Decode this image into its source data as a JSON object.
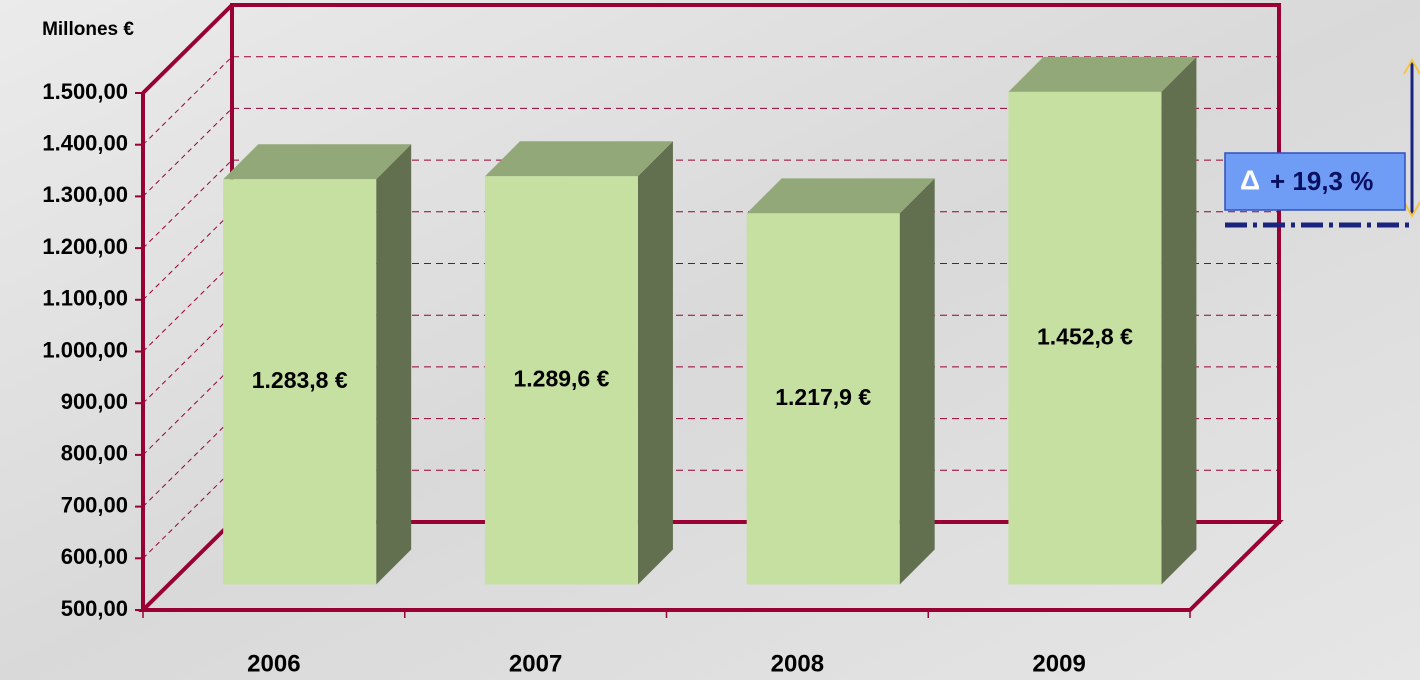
{
  "chart_data": {
    "type": "bar3d",
    "y_label": "Millones €",
    "categories": [
      "2006",
      "2007",
      "2008",
      "2009"
    ],
    "values": [
      1283.8,
      1289.6,
      1217.9,
      1452.8
    ],
    "value_labels": [
      "1.283,8 €",
      "1.289,6 €",
      "1.217,9 €",
      "1.452,8 €"
    ],
    "color": "#c5e0a0",
    "ylim": [
      500,
      1500
    ],
    "yticks": [
      {
        "value": 500,
        "label": "500,00"
      },
      {
        "value": 600,
        "label": "600,00"
      },
      {
        "value": 700,
        "label": "700,00"
      },
      {
        "value": 800,
        "label": "800,00"
      },
      {
        "value": 900,
        "label": "900,00"
      },
      {
        "value": 1000,
        "label": "1.000,00"
      },
      {
        "value": 1100,
        "label": "1.100,00"
      },
      {
        "value": 1200,
        "label": "1.200,00"
      },
      {
        "value": 1300,
        "label": "1.300,00"
      },
      {
        "value": 1400,
        "label": "1.400,00"
      },
      {
        "value": 1500,
        "label": "1.500,00"
      }
    ],
    "grid": true,
    "annotation": {
      "symbol": "Δ",
      "text": "+ 19,3 %"
    }
  }
}
